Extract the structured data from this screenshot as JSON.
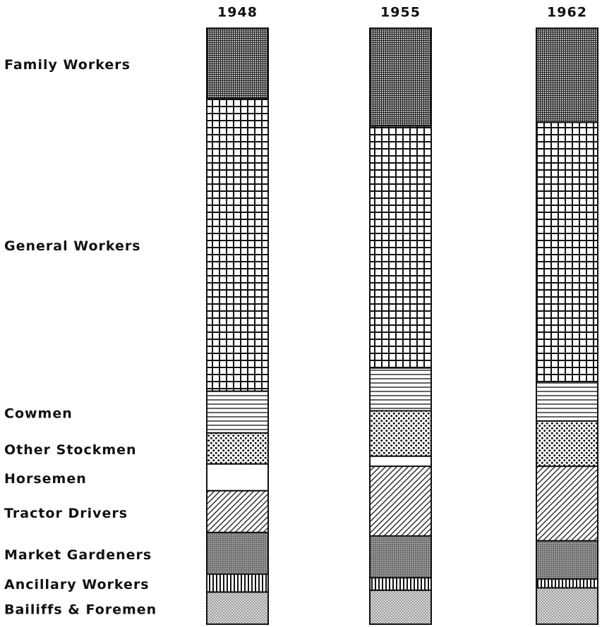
{
  "chart_data": {
    "type": "stacked_bar",
    "categories": [
      "1948",
      "1955",
      "1962"
    ],
    "ylim": [
      0,
      100
    ],
    "series": [
      {
        "name": "Bailiffs & Foremen",
        "pattern": "stipple-light",
        "values": [
          5.4,
          5.7,
          6.1
        ]
      },
      {
        "name": "Ancillary Workers",
        "pattern": "vertical-lines",
        "values": [
          3.0,
          2.1,
          1.5
        ]
      },
      {
        "name": "Market Gardeners",
        "pattern": "stipple-dark",
        "values": [
          7.0,
          7.0,
          6.4
        ]
      },
      {
        "name": "Tractor Drivers",
        "pattern": "diagonal-lines",
        "values": [
          7.0,
          11.7,
          12.5
        ]
      },
      {
        "name": "Horsemen",
        "pattern": "blank",
        "values": [
          4.5,
          1.7,
          0
        ]
      },
      {
        "name": "Other Stockmen",
        "pattern": "dots",
        "values": [
          5.2,
          7.6,
          7.6
        ]
      },
      {
        "name": "Cowmen",
        "pattern": "horizontal-lines",
        "values": [
          7.0,
          7.2,
          6.6
        ]
      },
      {
        "name": "General Workers",
        "pattern": "grid",
        "values": [
          49.2,
          40.6,
          43.5
        ]
      },
      {
        "name": "Family Workers",
        "pattern": "fine-grid",
        "values": [
          11.7,
          16.4,
          15.8
        ]
      }
    ]
  }
}
